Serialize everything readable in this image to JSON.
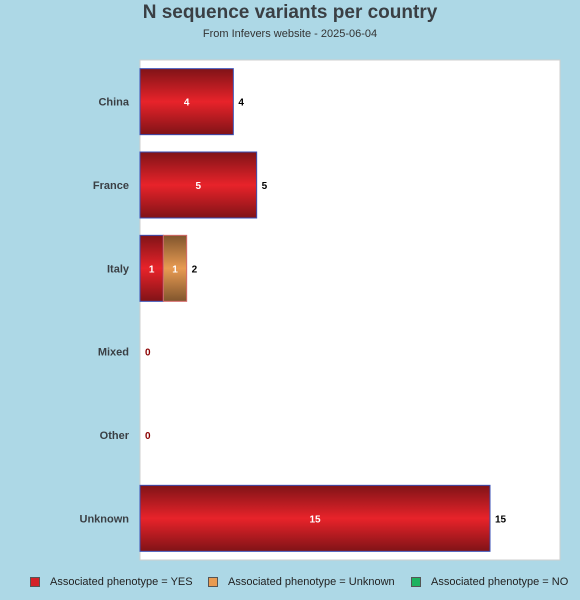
{
  "chart_data": {
    "type": "bar",
    "orientation": "horizontal",
    "stacked": true,
    "title": "N sequence variants per country",
    "subtitle": "From Infevers website - 2025-06-04",
    "categories": [
      "China",
      "France",
      "Italy",
      "Mixed",
      "Other",
      "Unknown"
    ],
    "series": [
      {
        "name": "Associated phenotype = YES",
        "values": [
          4,
          5,
          1,
          0,
          0,
          15
        ],
        "color": "#e8232a"
      },
      {
        "name": "Associated phenotype = Unknown",
        "values": [
          0,
          0,
          1,
          0,
          0,
          0
        ],
        "color": "#e89b52"
      },
      {
        "name": "Associated phenotype = NO",
        "values": [
          0,
          0,
          0,
          0,
          0,
          0
        ],
        "color": "#1db25f"
      }
    ],
    "totals": [
      4,
      5,
      2,
      0,
      0,
      15
    ],
    "xlim": [
      0,
      18
    ],
    "grid": false,
    "legend_position": "bottom"
  },
  "colors": {
    "background": "#add8e6",
    "plot_background": "#ffffff",
    "zero_label": "#8b0000"
  }
}
